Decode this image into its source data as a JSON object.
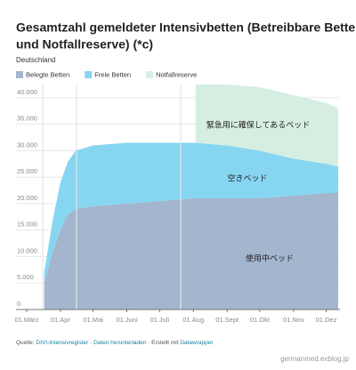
{
  "chart_data": {
    "type": "stacked-area",
    "title": [
      "Gesamtzahl gemeldeter Intensivbetten (Betreibbare Betten",
      "und Notfallreserve) (*c)"
    ],
    "subtitle": "Deutschland",
    "x": [
      "17.03",
      "25.03",
      "01.04",
      "08.04",
      "15.04",
      "01.05",
      "01.06",
      "01.07",
      "01.08",
      "03.08",
      "01.09",
      "01.10",
      "01.11",
      "01.12",
      "12.12"
    ],
    "series": [
      {
        "name": "Belegte Betten",
        "color": "#a3b6ce",
        "values": [
          5000,
          11000,
          15000,
          18000,
          19000,
          19500,
          20000,
          20500,
          21000,
          21000,
          21000,
          21000,
          21500,
          22000,
          22000
        ]
      },
      {
        "name": "Freie Betten",
        "color": "#86d6f2",
        "values": [
          2000,
          6000,
          9000,
          10000,
          11000,
          11500,
          11500,
          11000,
          10500,
          10500,
          10000,
          9000,
          7000,
          5500,
          5000
        ]
      },
      {
        "name": "Notfallreserve",
        "color": "#d6eee2",
        "values": [
          null,
          null,
          null,
          null,
          null,
          null,
          null,
          null,
          null,
          11000,
          11500,
          12000,
          12000,
          11500,
          11000
        ]
      }
    ],
    "annotations": [
      "緊急用に確保してあるベッド",
      "空きベッド",
      "使用中ベッド"
    ],
    "xlim": [
      "01.03",
      "12.12"
    ],
    "xticks": [
      {
        "value": "01.03",
        "label": "01.März"
      },
      {
        "value": "01.04",
        "label": "01.Apr"
      },
      {
        "value": "01.05",
        "label": "01.Mai"
      },
      {
        "value": "01.06",
        "label": "01.Juni"
      },
      {
        "value": "01.07",
        "label": "01.Juli"
      },
      {
        "value": "01.08",
        "label": "01.Aug"
      },
      {
        "value": "01.09",
        "label": "01.Sept"
      },
      {
        "value": "01.10",
        "label": "01.Okt"
      },
      {
        "value": "01.11",
        "label": "01.Nov"
      },
      {
        "value": "01.12",
        "label": "01.Dez"
      }
    ],
    "ylim": [
      0,
      42500
    ],
    "yticks": [
      0,
      {
        "value": 5000,
        "label": "5.000"
      },
      {
        "value": 10000,
        "label": "10.000"
      },
      {
        "value": 15000,
        "label": "15.000"
      },
      {
        "value": 20000,
        "label": "20.000"
      },
      {
        "value": 25000,
        "label": "25.000"
      },
      {
        "value": 30000,
        "label": "30.000"
      },
      {
        "value": 35000,
        "label": "35.000"
      },
      {
        "value": 40000,
        "label": "40.000"
      }
    ],
    "grid": true,
    "source": {
      "prefix": "Quelle:",
      "source": "DIVI-Intensivregister",
      "sep1": "·",
      "download": "Daten herunterladen",
      "sep2": "· Erstellt mit",
      "tool": "Datawrapper"
    },
    "watermark": "germanmed.exblog.jp"
  }
}
